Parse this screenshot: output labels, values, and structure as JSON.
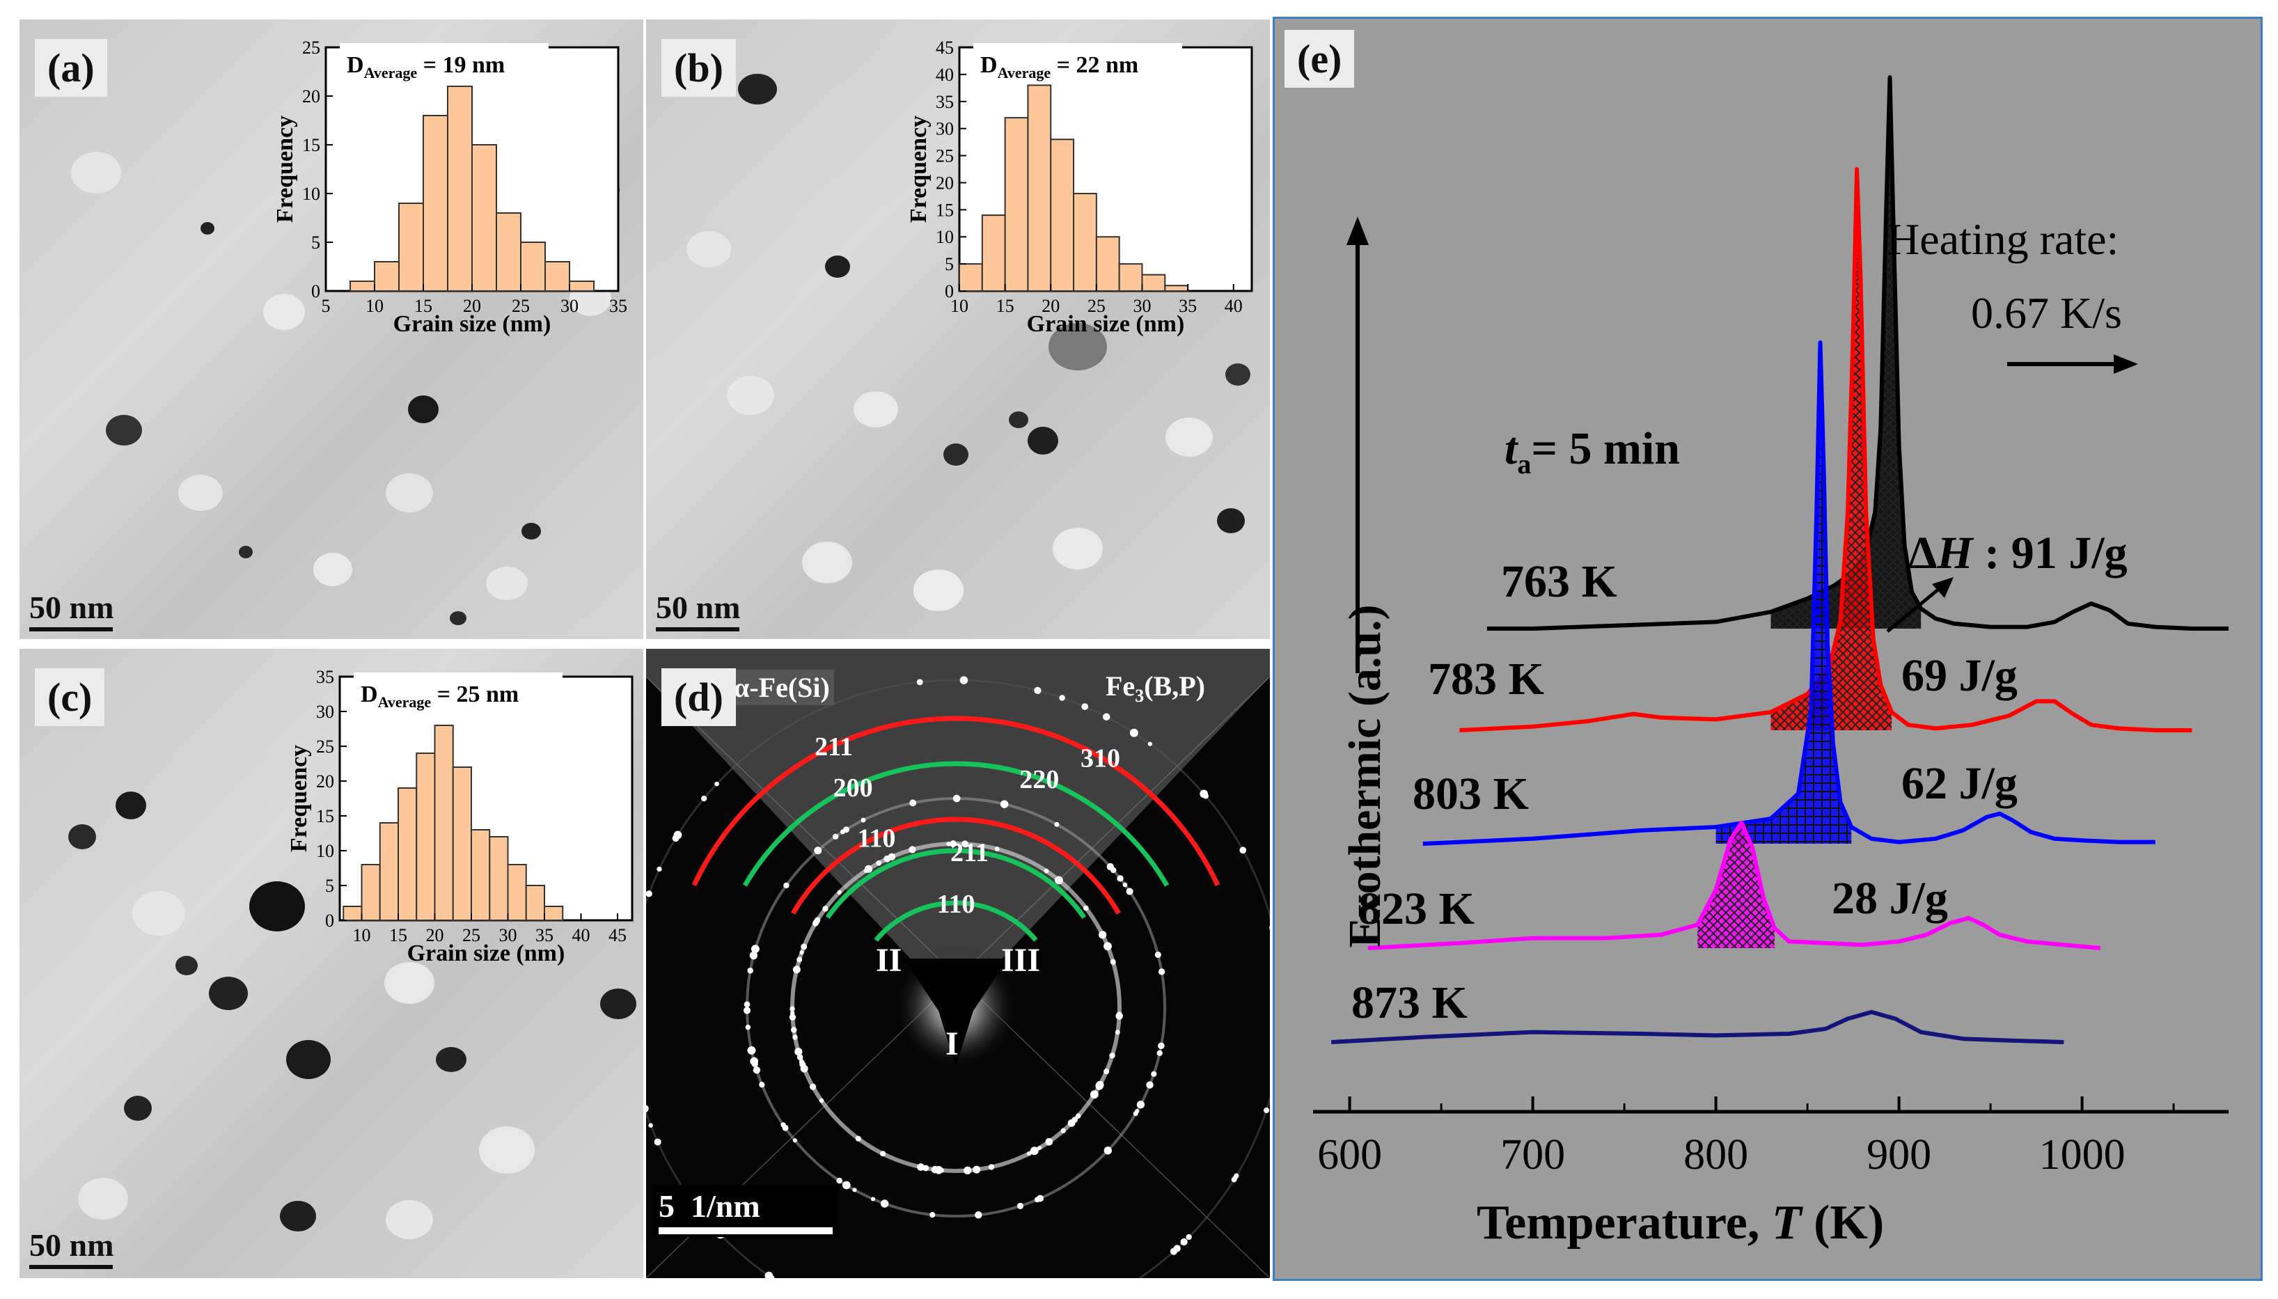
{
  "panels": {
    "a": {
      "label": "(a)",
      "scale_bar": "50 nm",
      "histogram": {
        "type": "bar",
        "title": "D",
        "title_sub": "Average",
        "title_value": "= 19 nm",
        "xlabel": "Grain size (nm)",
        "ylabel": "Frequency",
        "bin_start": 7.5,
        "bin_width": 2.5,
        "values": [
          1,
          3,
          9,
          18,
          21,
          15,
          8,
          5,
          3,
          1
        ],
        "xlim": [
          5,
          35
        ],
        "ylim": [
          0,
          25
        ],
        "xticks": [
          "5",
          "10",
          "15",
          "20",
          "25",
          "30",
          "35"
        ],
        "yticks": [
          "0",
          "5",
          "10",
          "15",
          "20",
          "25"
        ]
      }
    },
    "b": {
      "label": "(b)",
      "scale_bar": "50 nm",
      "histogram": {
        "type": "bar",
        "title": "D",
        "title_sub": "Average",
        "title_value": "= 22 nm",
        "xlabel": "Grain size (nm)",
        "ylabel": "Frequency",
        "bin_start": 10,
        "bin_width": 2.5,
        "values": [
          5,
          14,
          32,
          38,
          28,
          18,
          10,
          5,
          3,
          1
        ],
        "xlim": [
          10,
          42
        ],
        "ylim": [
          0,
          45
        ],
        "xticks": [
          "10",
          "15",
          "20",
          "25",
          "30",
          "35",
          "40"
        ],
        "yticks": [
          "0",
          "5",
          "10",
          "15",
          "20",
          "25",
          "30",
          "35",
          "40",
          "45"
        ]
      }
    },
    "c": {
      "label": "(c)",
      "scale_bar": "50 nm",
      "histogram": {
        "type": "bar",
        "title": "D",
        "title_sub": "Average",
        "title_value": "= 25 nm",
        "xlabel": "Grain size (nm)",
        "ylabel": "Frequency",
        "bin_start": 7.5,
        "bin_width": 2.5,
        "values": [
          2,
          8,
          14,
          19,
          24,
          28,
          22,
          13,
          12,
          8,
          5,
          2
        ],
        "xlim": [
          7,
          47
        ],
        "ylim": [
          0,
          35
        ],
        "xticks": [
          "10",
          "15",
          "20",
          "25",
          "30",
          "35",
          "40",
          "45"
        ],
        "yticks": [
          "0",
          "5",
          "10",
          "15",
          "20",
          "25",
          "30",
          "35"
        ]
      }
    },
    "d": {
      "label": "(d)",
      "scale_bar": "5  1/nm",
      "phase_left": "α-Fe(Si)",
      "phase_right": "Fe",
      "phase_right_sub": "3",
      "phase_right_tail": "(B,P)",
      "ring_labels": [
        "211",
        "310",
        "200",
        "220",
        "110",
        "211",
        "110"
      ],
      "regions": [
        "II",
        "III",
        "I"
      ]
    },
    "e": {
      "label": "(e)",
      "heating_rate_label": "Heating rate:",
      "heating_rate_value": "0.67 K/s",
      "ta_prefix": "t",
      "ta_sub": "a",
      "ta_value": "= 5 min",
      "dh_delta": "Δ",
      "dh_symbol": "H",
      "dh_value": " : 91 J/g",
      "yaxis_label": "Exothermic (a.u.)",
      "xaxis_label": "Temperature, ",
      "xaxis_symbol": "T",
      "xaxis_unit": " (K)"
    }
  },
  "chart_data": {
    "type": "line",
    "title": "",
    "xlabel": "Temperature, T (K)",
    "ylabel": "Exothermic (a.u.)",
    "xlim": [
      580,
      1080
    ],
    "xticks": [
      600,
      700,
      800,
      900,
      1000
    ],
    "series": [
      {
        "name": "763 K",
        "color": "#000000",
        "enthalpy": "91 J/g",
        "hatch": "crosshatch",
        "x": [
          675,
          700,
          750,
          800,
          830,
          850,
          865,
          875,
          882,
          887,
          890,
          893,
          895,
          897,
          900,
          903,
          907,
          912,
          920,
          930,
          950,
          970,
          985,
          995,
          1005,
          1015,
          1025,
          1040,
          1060,
          1080
        ],
        "y": [
          0,
          0,
          0.2,
          0.4,
          1.0,
          1.8,
          2.6,
          3.4,
          4.6,
          7,
          12,
          25,
          33,
          24,
          11,
          5,
          2.2,
          1.2,
          0.6,
          0.3,
          0.1,
          0.1,
          0.4,
          1.0,
          1.5,
          1.1,
          0.3,
          0.1,
          0,
          0
        ]
      },
      {
        "name": "783 K",
        "color": "#ff0000",
        "enthalpy": "69 J/g",
        "hatch": "crosshatch",
        "x": [
          660,
          700,
          730,
          755,
          770,
          800,
          830,
          850,
          862,
          868,
          872,
          875,
          877,
          879,
          882,
          886,
          890,
          896,
          905,
          920,
          940,
          960,
          975,
          985,
          995,
          1005,
          1020,
          1040,
          1060
        ],
        "y": [
          0,
          0.2,
          0.5,
          0.9,
          0.7,
          0.6,
          1.0,
          2.0,
          3.5,
          6,
          12,
          22,
          31,
          25,
          12,
          5,
          2.5,
          1.0,
          0.3,
          0.1,
          0.3,
          0.8,
          1.6,
          1.6,
          0.9,
          0.3,
          0.1,
          0,
          0
        ]
      },
      {
        "name": "803 K",
        "color": "#0000ff",
        "enthalpy": "62 J/g",
        "hatch": "grid",
        "x": [
          640,
          700,
          760,
          800,
          830,
          845,
          852,
          855,
          857,
          859,
          861,
          864,
          868,
          874,
          885,
          900,
          920,
          935,
          948,
          955,
          962,
          972,
          985,
          1000,
          1020,
          1040
        ],
        "y": [
          0,
          0.3,
          0.8,
          1.0,
          1.5,
          3,
          8,
          20,
          30,
          22,
          12,
          6,
          2.5,
          1.0,
          0.3,
          0.1,
          0.3,
          0.8,
          1.6,
          1.8,
          1.4,
          0.7,
          0.3,
          0.2,
          0.1,
          0.1
        ]
      },
      {
        "name": "823 K",
        "color": "#ff00ff",
        "enthalpy": "28 J/g",
        "hatch": "crosshatch",
        "x": [
          610,
          660,
          700,
          740,
          770,
          790,
          800,
          808,
          814,
          820,
          826,
          832,
          840,
          860,
          880,
          900,
          915,
          928,
          938,
          946,
          955,
          970,
          990,
          1010
        ],
        "y": [
          0,
          0.3,
          0.6,
          0.6,
          0.8,
          1.4,
          3.5,
          6.5,
          7.5,
          6,
          3,
          1.2,
          0.4,
          0.3,
          0.2,
          0.4,
          0.8,
          1.5,
          1.8,
          1.4,
          0.8,
          0.4,
          0.2,
          0
        ]
      },
      {
        "name": "873 K",
        "color": "#14147a",
        "enthalpy": "",
        "hatch": "none",
        "x": [
          590,
          640,
          700,
          760,
          800,
          840,
          860,
          872,
          885,
          898,
          912,
          935,
          960,
          990
        ],
        "y": [
          0,
          0.3,
          0.6,
          0.5,
          0.4,
          0.5,
          0.8,
          1.4,
          1.8,
          1.4,
          0.6,
          0.2,
          0.1,
          0
        ]
      }
    ]
  }
}
